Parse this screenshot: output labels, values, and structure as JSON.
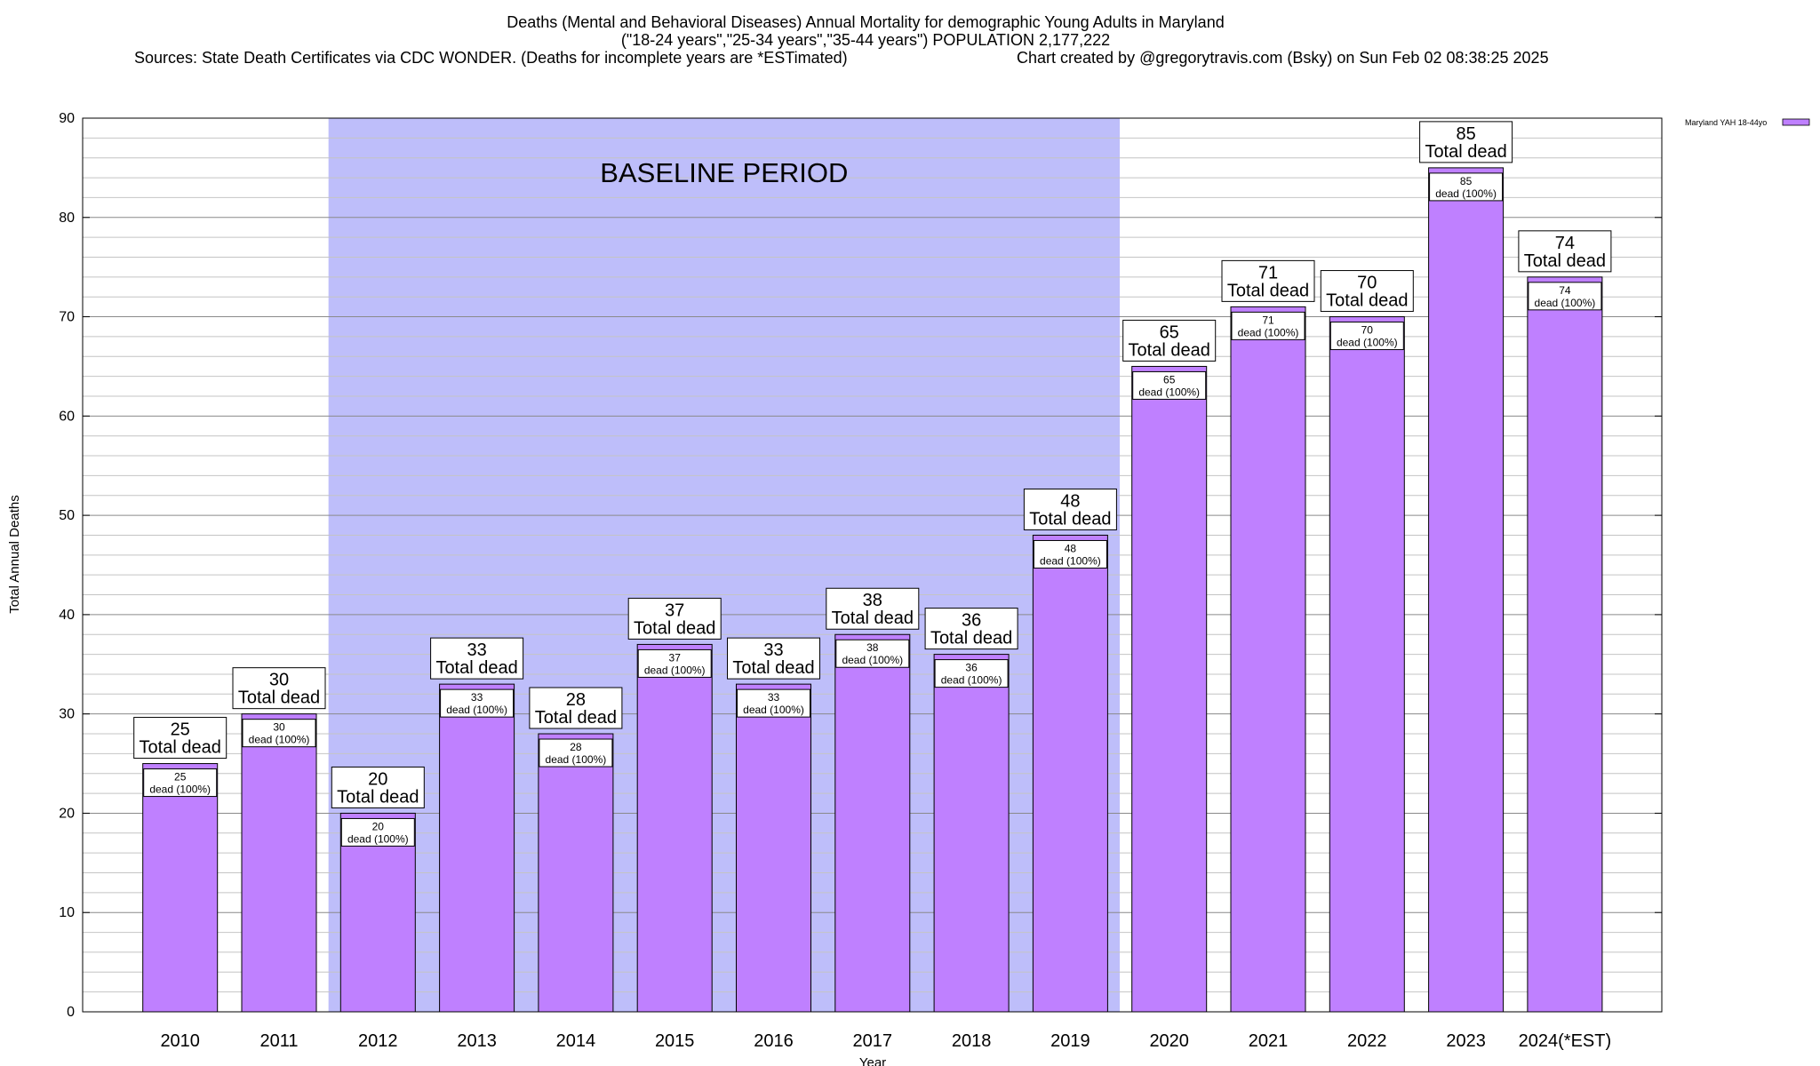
{
  "chart_data": {
    "type": "bar",
    "title_lines": [
      "Deaths (Mental and Behavioral Diseases) Annual Mortality for demographic Young Adults in Maryland",
      "(\"18-24 years\",\"25-34 years\",\"35-44 years\") POPULATION 2,177,222"
    ],
    "source_text": "Sources: State Death Certificates via CDC WONDER. (Deaths for incomplete years are *ESTimated)",
    "credit_text": "Chart created by @gregorytravis.com (Bsky) on Sun Feb 02 08:38:25 2025",
    "xlabel": "Year",
    "ylabel": "Total Annual Deaths",
    "ylim": [
      0,
      90
    ],
    "yticks": [
      0,
      10,
      20,
      30,
      40,
      50,
      60,
      70,
      80,
      90
    ],
    "categories": [
      "2010",
      "2011",
      "2012",
      "2013",
      "2014",
      "2015",
      "2016",
      "2017",
      "2018",
      "2019",
      "2020",
      "2021",
      "2022",
      "2023",
      "2024(*EST)"
    ],
    "series": [
      {
        "name": "Maryland YAH 18-44yo",
        "values": [
          25,
          30,
          20,
          33,
          28,
          37,
          33,
          38,
          36,
          48,
          65,
          71,
          70,
          85,
          74
        ],
        "color": "#bf80ff"
      }
    ],
    "bar_top_label_text": "Total dead",
    "bar_inner_label_text": "dead (100%)",
    "baseline_period": {
      "label": "BASELINE PERIOD",
      "start": "2012",
      "end": "2019",
      "color": "#bebefa"
    },
    "legend": "Maryland YAH 18-44yo"
  }
}
